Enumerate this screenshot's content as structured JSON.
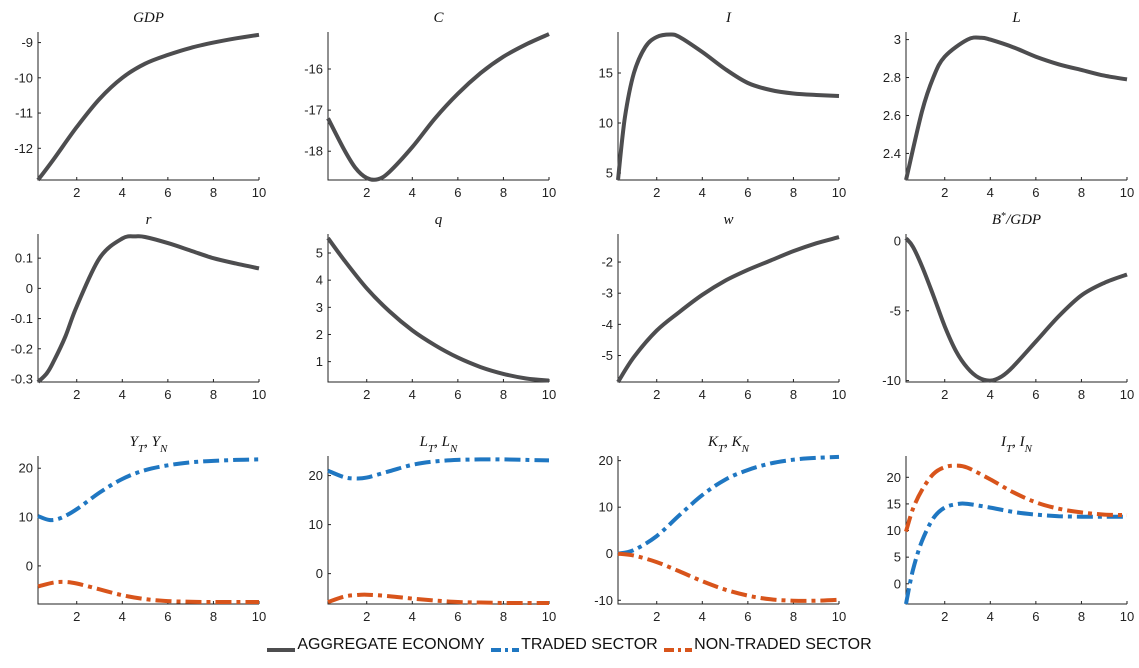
{
  "colors": {
    "aggregate": "#4d4d4f",
    "traded": "#1f77c2",
    "nontraded": "#d8541b"
  },
  "legend": [
    {
      "label": "AGGREGATE ECONOMY",
      "style": "solid",
      "color_key": "aggregate"
    },
    {
      "label": "TRADED SECTOR",
      "style": "dashdot",
      "color_key": "traded"
    },
    {
      "label": "NON-TRADED SECTOR",
      "style": "dashdot",
      "color_key": "nontraded"
    }
  ],
  "chart_data": [
    {
      "type": "line",
      "title": "GDP",
      "xlim": [
        0.3,
        10
      ],
      "ylim": [
        -12.9,
        -8.7
      ],
      "xticks": [
        2,
        4,
        6,
        8,
        10
      ],
      "yticks": [
        -12,
        -11,
        -10,
        -9
      ],
      "series": [
        {
          "color_key": "aggregate",
          "style": "solid",
          "x": [
            0.3,
            1,
            2,
            3,
            4,
            5,
            6,
            7,
            8,
            9,
            10
          ],
          "y": [
            -12.9,
            -12.3,
            -11.4,
            -10.6,
            -10.0,
            -9.6,
            -9.35,
            -9.15,
            -9.0,
            -8.88,
            -8.78
          ]
        }
      ]
    },
    {
      "type": "line",
      "title": "C",
      "xlim": [
        0.3,
        10
      ],
      "ylim": [
        -18.7,
        -15.1
      ],
      "xticks": [
        2,
        4,
        6,
        8,
        10
      ],
      "yticks": [
        -18,
        -17,
        -16
      ],
      "series": [
        {
          "color_key": "aggregate",
          "style": "solid",
          "x": [
            0.3,
            1,
            1.5,
            2,
            2.5,
            3,
            4,
            5,
            6,
            7,
            8,
            9,
            10
          ],
          "y": [
            -17.2,
            -17.95,
            -18.4,
            -18.65,
            -18.68,
            -18.5,
            -17.9,
            -17.2,
            -16.6,
            -16.1,
            -15.7,
            -15.4,
            -15.15
          ]
        }
      ]
    },
    {
      "type": "line",
      "title": "I",
      "xlim": [
        0.3,
        10
      ],
      "ylim": [
        4.3,
        19.1
      ],
      "xticks": [
        2,
        4,
        6,
        8,
        10
      ],
      "yticks": [
        5,
        10,
        15
      ],
      "series": [
        {
          "color_key": "aggregate",
          "style": "solid",
          "x": [
            0.3,
            0.6,
            1,
            1.5,
            2,
            2.6,
            3,
            4,
            5,
            6,
            7,
            8,
            9,
            10
          ],
          "y": [
            4.3,
            10.5,
            15.0,
            17.6,
            18.6,
            18.85,
            18.6,
            17.1,
            15.4,
            14.0,
            13.3,
            12.95,
            12.8,
            12.7
          ]
        }
      ]
    },
    {
      "type": "line",
      "title": "L",
      "xlim": [
        0.3,
        10
      ],
      "ylim": [
        2.26,
        3.04
      ],
      "xticks": [
        2,
        4,
        6,
        8,
        10
      ],
      "yticks": [
        2.4,
        2.6,
        2.8,
        3
      ],
      "series": [
        {
          "color_key": "aggregate",
          "style": "solid",
          "x": [
            0.3,
            1,
            1.5,
            2,
            3,
            3.6,
            4,
            5,
            6,
            7,
            8,
            9,
            10
          ],
          "y": [
            2.26,
            2.62,
            2.8,
            2.91,
            3.0,
            3.01,
            3.0,
            2.96,
            2.91,
            2.87,
            2.84,
            2.81,
            2.79
          ]
        }
      ]
    },
    {
      "type": "line",
      "title": "r",
      "xlim": [
        0.3,
        10
      ],
      "ylim": [
        -0.31,
        0.18
      ],
      "xticks": [
        2,
        4,
        6,
        8,
        10
      ],
      "yticks": [
        -0.3,
        -0.2,
        -0.1,
        0,
        0.1
      ],
      "series": [
        {
          "color_key": "aggregate",
          "style": "solid",
          "x": [
            0.3,
            0.7,
            1,
            1.5,
            2,
            3,
            4,
            4.6,
            5,
            6,
            7,
            8,
            9,
            10
          ],
          "y": [
            -0.31,
            -0.28,
            -0.24,
            -0.16,
            -0.06,
            0.1,
            0.165,
            0.172,
            0.17,
            0.15,
            0.125,
            0.1,
            0.082,
            0.066
          ]
        }
      ]
    },
    {
      "type": "line",
      "title": "q",
      "xlim": [
        0.3,
        10
      ],
      "ylim": [
        0.25,
        5.7
      ],
      "xticks": [
        2,
        4,
        6,
        8,
        10
      ],
      "yticks": [
        1,
        2,
        3,
        4,
        5
      ],
      "series": [
        {
          "color_key": "aggregate",
          "style": "solid",
          "x": [
            0.3,
            1,
            2,
            3,
            4,
            5,
            6,
            7,
            8,
            9,
            10
          ],
          "y": [
            5.55,
            4.75,
            3.7,
            2.85,
            2.15,
            1.6,
            1.15,
            0.8,
            0.55,
            0.38,
            0.3
          ]
        }
      ]
    },
    {
      "type": "line",
      "title": "w",
      "xlim": [
        0.3,
        10
      ],
      "ylim": [
        -5.85,
        -1.1
      ],
      "xticks": [
        2,
        4,
        6,
        8,
        10
      ],
      "yticks": [
        -5,
        -4,
        -3,
        -2
      ],
      "series": [
        {
          "color_key": "aggregate",
          "style": "solid",
          "x": [
            0.3,
            1,
            2,
            3,
            4,
            5,
            6,
            7,
            8,
            9,
            10
          ],
          "y": [
            -5.85,
            -5.05,
            -4.2,
            -3.6,
            -3.05,
            -2.6,
            -2.25,
            -1.95,
            -1.65,
            -1.4,
            -1.2
          ]
        }
      ]
    },
    {
      "type": "line",
      "title": "B*/GDP",
      "xlim": [
        0.3,
        10
      ],
      "ylim": [
        -10.1,
        0.5
      ],
      "xticks": [
        2,
        4,
        6,
        8,
        10
      ],
      "yticks": [
        -10,
        -5,
        0
      ],
      "series": [
        {
          "color_key": "aggregate",
          "style": "solid",
          "x": [
            0.3,
            0.6,
            1,
            1.5,
            2,
            2.5,
            3,
            3.5,
            4,
            4.5,
            5,
            6,
            7,
            8,
            9,
            10
          ],
          "y": [
            0.2,
            -0.4,
            -1.8,
            -3.9,
            -6.1,
            -7.9,
            -9.1,
            -9.8,
            -10.0,
            -9.7,
            -9.0,
            -7.2,
            -5.4,
            -3.9,
            -3.0,
            -2.4
          ]
        }
      ]
    },
    {
      "type": "line",
      "title": "Y_T, Y_N",
      "xlim": [
        0.3,
        10
      ],
      "ylim": [
        -7.8,
        22.5
      ],
      "xticks": [
        2,
        4,
        6,
        8,
        10
      ],
      "yticks": [
        0,
        10,
        20
      ],
      "series": [
        {
          "color_key": "traded",
          "style": "dashdot",
          "x": [
            0.3,
            0.8,
            1.3,
            2,
            3,
            4,
            5,
            6,
            7,
            8,
            9,
            10
          ],
          "y": [
            10.2,
            9.4,
            9.8,
            11.6,
            15.0,
            17.8,
            19.6,
            20.6,
            21.2,
            21.5,
            21.7,
            21.8
          ]
        },
        {
          "color_key": "nontraded",
          "style": "dashdot",
          "x": [
            0.3,
            1,
            1.5,
            2,
            3,
            4,
            5,
            6,
            7,
            8,
            9,
            10
          ],
          "y": [
            -4.2,
            -3.4,
            -3.3,
            -3.6,
            -4.8,
            -6.0,
            -6.8,
            -7.2,
            -7.35,
            -7.4,
            -7.4,
            -7.4
          ]
        }
      ]
    },
    {
      "type": "line",
      "title": "L_T, L_N",
      "xlim": [
        0.3,
        10
      ],
      "ylim": [
        -6.2,
        24.0
      ],
      "xticks": [
        2,
        4,
        6,
        8,
        10
      ],
      "yticks": [
        0,
        10,
        20
      ],
      "series": [
        {
          "color_key": "traded",
          "style": "dashdot",
          "x": [
            0.3,
            1,
            1.5,
            2,
            3,
            4,
            5,
            6,
            7,
            8,
            9,
            10
          ],
          "y": [
            21.0,
            19.7,
            19.4,
            19.6,
            20.9,
            22.2,
            22.9,
            23.2,
            23.3,
            23.3,
            23.2,
            23.1
          ]
        },
        {
          "color_key": "nontraded",
          "style": "dashdot",
          "x": [
            0.3,
            1,
            1.5,
            2,
            3,
            4,
            5,
            6,
            7,
            8,
            9,
            10
          ],
          "y": [
            -5.8,
            -4.7,
            -4.4,
            -4.3,
            -4.6,
            -5.1,
            -5.5,
            -5.8,
            -5.9,
            -6.0,
            -6.0,
            -6.0
          ]
        }
      ]
    },
    {
      "type": "line",
      "title": "K_T, K_N",
      "xlim": [
        0.3,
        10
      ],
      "ylim": [
        -10.8,
        21.0
      ],
      "xticks": [
        2,
        4,
        6,
        8,
        10
      ],
      "yticks": [
        -10,
        0,
        10,
        20
      ],
      "series": [
        {
          "color_key": "traded",
          "style": "dashdot",
          "x": [
            0.3,
            1,
            2,
            3,
            4,
            5,
            6,
            7,
            8,
            9,
            10
          ],
          "y": [
            0.0,
            0.8,
            3.8,
            8.3,
            12.6,
            15.9,
            18.0,
            19.4,
            20.2,
            20.6,
            20.8
          ]
        },
        {
          "color_key": "nontraded",
          "style": "dashdot",
          "x": [
            0.3,
            1,
            2,
            3,
            4,
            5,
            6,
            7,
            8,
            9,
            10
          ],
          "y": [
            0.0,
            -0.4,
            -1.8,
            -3.8,
            -5.9,
            -7.7,
            -9.0,
            -9.8,
            -10.1,
            -10.1,
            -9.9
          ]
        }
      ]
    },
    {
      "type": "line",
      "title": "I_T, I_N",
      "xlim": [
        0.3,
        10
      ],
      "ylim": [
        -3.8,
        24.0
      ],
      "xticks": [
        2,
        4,
        6,
        8,
        10
      ],
      "yticks": [
        0,
        5,
        10,
        15,
        20
      ],
      "ytick_labels": [
        "0",
        "5",
        "10",
        "15",
        "20"
      ],
      "series": [
        {
          "color_key": "traded",
          "style": "dashdot",
          "x": [
            0.3,
            0.6,
            1,
            1.5,
            2,
            2.6,
            3,
            4,
            5,
            6,
            7,
            8,
            9,
            10
          ],
          "y": [
            -3.8,
            2.5,
            8.0,
            12.3,
            14.3,
            15.0,
            15.0,
            14.3,
            13.5,
            13.0,
            12.7,
            12.6,
            12.6,
            12.6
          ]
        },
        {
          "color_key": "nontraded",
          "style": "dashdot",
          "x": [
            0.3,
            0.6,
            1,
            1.5,
            2,
            2.5,
            3,
            4,
            5,
            6,
            7,
            8,
            9,
            10
          ],
          "y": [
            9.8,
            14.0,
            17.6,
            20.6,
            21.9,
            22.2,
            21.8,
            19.6,
            17.2,
            15.3,
            14.1,
            13.4,
            13.0,
            12.9
          ]
        }
      ]
    }
  ]
}
